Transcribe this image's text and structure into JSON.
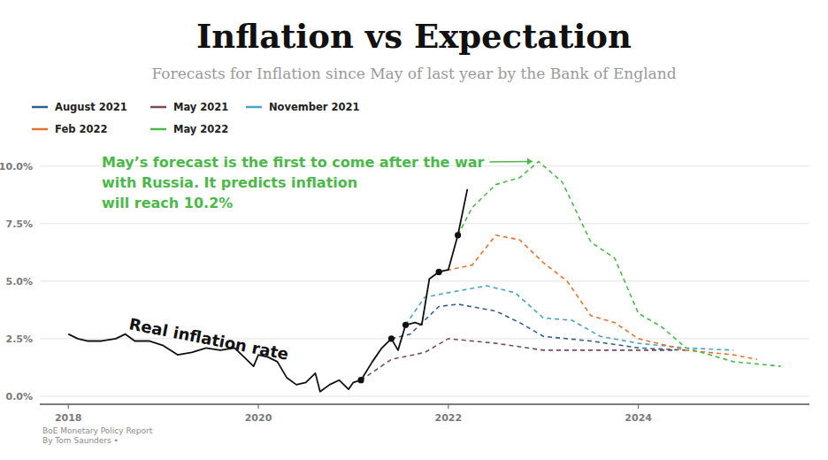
{
  "chart_data": {
    "type": "line",
    "title": "Inflation vs Expectation",
    "subtitle": "Forecasts for Inflation since May of last year by the Bank of England",
    "annotation": [
      "May’s forecast is the first to come after the war",
      "with Russia. It predicts inflation",
      "will reach 10.2%"
    ],
    "source": [
      "BoE Monetary Policy Report",
      "By Tom Saunders •"
    ],
    "xlim": [
      2017.7,
      2025.8
    ],
    "xticks": [
      2018,
      2020,
      2022,
      2024
    ],
    "ylim": [
      -0.35,
      10.8
    ],
    "yticks": [
      {
        "value": 0,
        "label": "0.0%"
      },
      {
        "value": 2.5,
        "label": "2.5%"
      },
      {
        "value": 5,
        "label": "5.0%"
      },
      {
        "value": 7.5,
        "label": "7.5%"
      },
      {
        "value": 10,
        "label": "10.0%"
      }
    ],
    "grid": true,
    "legend": "top-left",
    "series": [
      {
        "name": "August 2021",
        "color": "#2f5f8c",
        "line_style": "dashed",
        "x": [
          2021.4,
          2021.6,
          2021.9,
          2022.1,
          2022.5,
          2022.75,
          2023.0,
          2023.5,
          2024.0,
          2024.5
        ],
        "values": [
          2.5,
          2.7,
          3.9,
          4.0,
          3.7,
          3.2,
          2.6,
          2.4,
          2.1,
          2.0
        ]
      },
      {
        "name": "May 2021",
        "color": "#7c4a5c",
        "line_style": "dashed",
        "x": [
          2021.08,
          2021.4,
          2021.75,
          2022.0,
          2022.5,
          2023.0,
          2023.5,
          2024.0,
          2024.4
        ],
        "values": [
          0.7,
          1.6,
          1.9,
          2.5,
          2.3,
          2.0,
          2.0,
          2.0,
          2.0
        ]
      },
      {
        "name": "November 2021",
        "color": "#4ba4c2",
        "line_style": "dashed",
        "x": [
          2021.55,
          2021.75,
          2022.0,
          2022.4,
          2022.7,
          2023.0,
          2023.3,
          2023.6,
          2024.0,
          2024.5,
          2025.0
        ],
        "values": [
          3.1,
          4.3,
          4.5,
          4.8,
          4.5,
          3.4,
          3.3,
          2.6,
          2.3,
          2.1,
          2.0
        ]
      },
      {
        "name": "Feb 2022",
        "color": "#e8732d",
        "line_style": "dashed",
        "x": [
          2021.9,
          2022.25,
          2022.5,
          2022.75,
          2023.0,
          2023.25,
          2023.5,
          2023.75,
          2024.0,
          2024.5,
          2025.0,
          2025.25
        ],
        "values": [
          5.4,
          5.7,
          7.0,
          6.8,
          5.8,
          5.0,
          3.5,
          3.2,
          2.5,
          2.0,
          1.8,
          1.6
        ]
      },
      {
        "name": "May 2022",
        "color": "#4cb84a",
        "line_style": "dashed",
        "x": [
          2022.1,
          2022.25,
          2022.5,
          2022.75,
          2022.95,
          2023.2,
          2023.5,
          2023.75,
          2024.0,
          2024.25,
          2024.5,
          2024.75,
          2025.0,
          2025.5
        ],
        "values": [
          7.0,
          8.2,
          9.2,
          9.5,
          10.2,
          9.3,
          6.7,
          6.0,
          3.6,
          3.0,
          2.1,
          1.8,
          1.5,
          1.3
        ]
      },
      {
        "name": "Real inflation rate",
        "color": "#111111",
        "line_style": "solid",
        "x": [
          2018.0,
          2018.1,
          2018.2,
          2018.35,
          2018.5,
          2018.6,
          2018.7,
          2018.85,
          2019.0,
          2019.15,
          2019.3,
          2019.45,
          2019.6,
          2019.75,
          2019.85,
          2019.95,
          2020.0,
          2020.1,
          2020.2,
          2020.3,
          2020.4,
          2020.5,
          2020.6,
          2020.65,
          2020.75,
          2020.85,
          2020.95,
          2021.0,
          2021.08,
          2021.2,
          2021.3,
          2021.4,
          2021.47,
          2021.55,
          2021.65,
          2021.72,
          2021.8,
          2021.9,
          2022.0,
          2022.1,
          2022.2
        ],
        "values": [
          2.7,
          2.5,
          2.4,
          2.4,
          2.5,
          2.7,
          2.4,
          2.4,
          2.2,
          1.8,
          1.9,
          2.1,
          2.0,
          2.1,
          1.7,
          1.3,
          1.8,
          1.7,
          1.5,
          0.8,
          0.5,
          0.6,
          1.0,
          0.2,
          0.5,
          0.7,
          0.3,
          0.6,
          0.7,
          1.5,
          2.1,
          2.5,
          2.0,
          3.1,
          3.2,
          3.1,
          5.1,
          5.4,
          5.5,
          7.0,
          9.0
        ]
      }
    ]
  }
}
